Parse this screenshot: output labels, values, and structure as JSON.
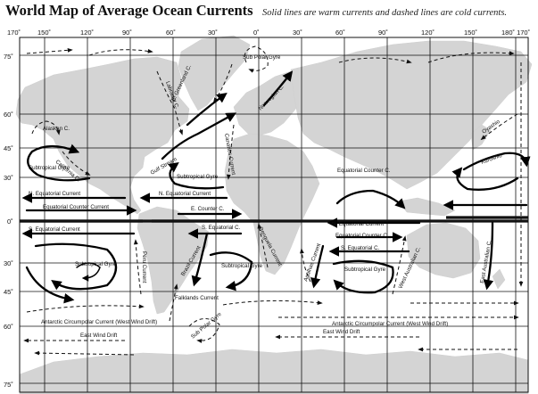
{
  "header": {
    "title": "World Map of Average Ocean Currents",
    "subtitle": "Solid lines are warm currents and dashed lines are cold currents."
  },
  "longitude_ticks": [
    "170˚",
    "150˚",
    "120˚",
    "90˚",
    "60˚",
    "30˚",
    "0˚",
    "30˚",
    "60˚",
    "90˚",
    "120˚",
    "150˚",
    "180˚ 170˚"
  ],
  "latitude_ticks": [
    "75˚",
    "60˚",
    "45˚",
    "30˚",
    "0˚",
    "30˚",
    "45˚",
    "60˚",
    "75˚"
  ],
  "currents": {
    "alaskan": "Alaskan C.",
    "subtropical_gyre_np": "Subtropical Gyre",
    "california": "California C.",
    "n_equatorial_pacific": "N. Equatorial Current",
    "equatorial_counter_pacific": "Equatorial Counter Current",
    "s_equatorial_pacific": "S. Equatorial Current",
    "subtropical_gyre_sp": "Subtropical Gyre",
    "peru": "Peru Current",
    "antarctic_circumpolar_w": "Antarctic Circumpolar Current (West Wind Drift)",
    "east_wind_drift_w": "East Wind Drift",
    "labrador": "Labrador C.",
    "e_greenland": "E. Greenland C.",
    "sub_polar_gyre_n": "Sub Polar Gyre",
    "norwegian": "Norwegian C.",
    "gulf_stream": "Gulf Stream",
    "canaries": "Canaries Current",
    "subtropical_gyre_na": "Subtropical Gyre",
    "n_equatorial_atlantic": "N. Equatorial Current",
    "e_counter_atlantic": "E. Counter C.",
    "s_equatorial_atlantic": "S. Equatorial C.",
    "brazil": "Brazil Current",
    "subtropical_gyre_sa": "Subtropical Gyre",
    "benguela": "Benguela Current",
    "falklands": "Falklands Current",
    "sub_polar_gyre_s": "Sub Polar Gyre",
    "equatorial_counter_indian": "Equatorial Counter C.",
    "n_equatorial_indian": "N. Equatorial Current",
    "equatorial_counter_indian2": "Equatorial Counter C.",
    "s_equatorial_indian": "S. Equatorial C.",
    "agulhas": "Agulhas Current",
    "subtropical_gyre_io": "Subtropical Gyre",
    "w_australian": "West Australian C.",
    "e_australian": "East Australian C.",
    "oyashio": "Oyashio",
    "kuroshio": "Kuroshio",
    "antarctic_circumpolar_e": "Antarctic Circumpolar Current (West Wind Drift)",
    "east_wind_drift_e": "East Wind Drift"
  }
}
